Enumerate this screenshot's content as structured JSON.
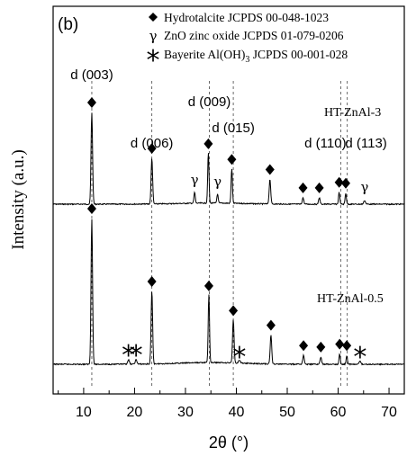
{
  "chart_data": {
    "type": "line",
    "panel_label": "(b)",
    "xlabel": "2θ (°)",
    "ylabel": "Intensity (a.u.)",
    "xlim": [
      4,
      73
    ],
    "xticks": [
      10,
      20,
      30,
      40,
      50,
      60,
      70
    ],
    "grid": false,
    "legend_position": "top",
    "legend": [
      {
        "symbol": "◆",
        "text": "Hydrotalcite JCPDS 00-048-1023"
      },
      {
        "symbol": "γ",
        "text": "ZnO zinc oxide JCPDS 01-079-0206"
      },
      {
        "symbol": "*",
        "text_pre": "Bayerite Al(OH)",
        "text_sub": "3",
        "text_post": " JCPDS 00-001-028"
      }
    ],
    "reference_lines_2theta": [
      11.6,
      23.4,
      34.7,
      39.4,
      60.5,
      61.8
    ],
    "hkl_labels": [
      {
        "text": "d (003)",
        "two_theta": 11.6
      },
      {
        "text": "d (006)",
        "two_theta": 23.4
      },
      {
        "text": "d (009)",
        "two_theta": 34.7
      },
      {
        "text": "d (015)",
        "two_theta": 39.4
      },
      {
        "text": "d (110)",
        "two_theta": 57.5
      },
      {
        "text": "d (113)",
        "two_theta": 65.5
      }
    ],
    "series": [
      {
        "name": "HT-ZnAl-3",
        "baseline": 0,
        "peaks": [
          {
            "two_theta": 11.6,
            "intensity": 1.0,
            "width": 0.35,
            "marker": "diamond"
          },
          {
            "two_theta": 23.4,
            "intensity": 0.5,
            "width": 0.35,
            "marker": "diamond"
          },
          {
            "two_theta": 31.8,
            "intensity": 0.12,
            "width": 0.3,
            "marker": "gamma"
          },
          {
            "two_theta": 34.5,
            "intensity": 0.55,
            "width": 0.3,
            "marker": "diamond"
          },
          {
            "two_theta": 36.3,
            "intensity": 0.1,
            "width": 0.3,
            "marker": "gamma"
          },
          {
            "two_theta": 39.1,
            "intensity": 0.38,
            "width": 0.3,
            "marker": "diamond"
          },
          {
            "two_theta": 46.6,
            "intensity": 0.27,
            "width": 0.35,
            "marker": "diamond"
          },
          {
            "two_theta": 53.1,
            "intensity": 0.07,
            "width": 0.35,
            "marker": "diamond"
          },
          {
            "two_theta": 56.3,
            "intensity": 0.07,
            "width": 0.35,
            "marker": "diamond"
          },
          {
            "two_theta": 60.2,
            "intensity": 0.13,
            "width": 0.3,
            "marker": "diamond"
          },
          {
            "two_theta": 61.5,
            "intensity": 0.12,
            "width": 0.3,
            "marker": "diamond"
          },
          {
            "two_theta": 65.2,
            "intensity": 0.04,
            "width": 0.4,
            "marker": "gamma"
          }
        ]
      },
      {
        "name": "HT-ZnAl-0.5",
        "baseline": 0,
        "peaks": [
          {
            "two_theta": 11.6,
            "intensity": 1.0,
            "width": 0.35,
            "marker": "diamond"
          },
          {
            "two_theta": 18.8,
            "intensity": 0.03,
            "width": 0.4,
            "marker": "star"
          },
          {
            "two_theta": 20.3,
            "intensity": 0.03,
            "width": 0.4,
            "marker": "star"
          },
          {
            "two_theta": 23.4,
            "intensity": 0.5,
            "width": 0.35,
            "marker": "diamond"
          },
          {
            "two_theta": 34.6,
            "intensity": 0.47,
            "width": 0.3,
            "marker": "diamond"
          },
          {
            "two_theta": 39.4,
            "intensity": 0.3,
            "width": 0.35,
            "marker": "diamond"
          },
          {
            "two_theta": 40.6,
            "intensity": 0.02,
            "width": 0.4,
            "marker": "star"
          },
          {
            "two_theta": 46.8,
            "intensity": 0.2,
            "width": 0.35,
            "marker": "diamond"
          },
          {
            "two_theta": 53.2,
            "intensity": 0.06,
            "width": 0.35,
            "marker": "diamond"
          },
          {
            "two_theta": 56.6,
            "intensity": 0.05,
            "width": 0.35,
            "marker": "diamond"
          },
          {
            "two_theta": 60.3,
            "intensity": 0.07,
            "width": 0.3,
            "marker": "diamond"
          },
          {
            "two_theta": 61.7,
            "intensity": 0.06,
            "width": 0.3,
            "marker": "diamond"
          },
          {
            "two_theta": 64.3,
            "intensity": 0.02,
            "width": 0.4,
            "marker": "star"
          }
        ]
      }
    ]
  }
}
